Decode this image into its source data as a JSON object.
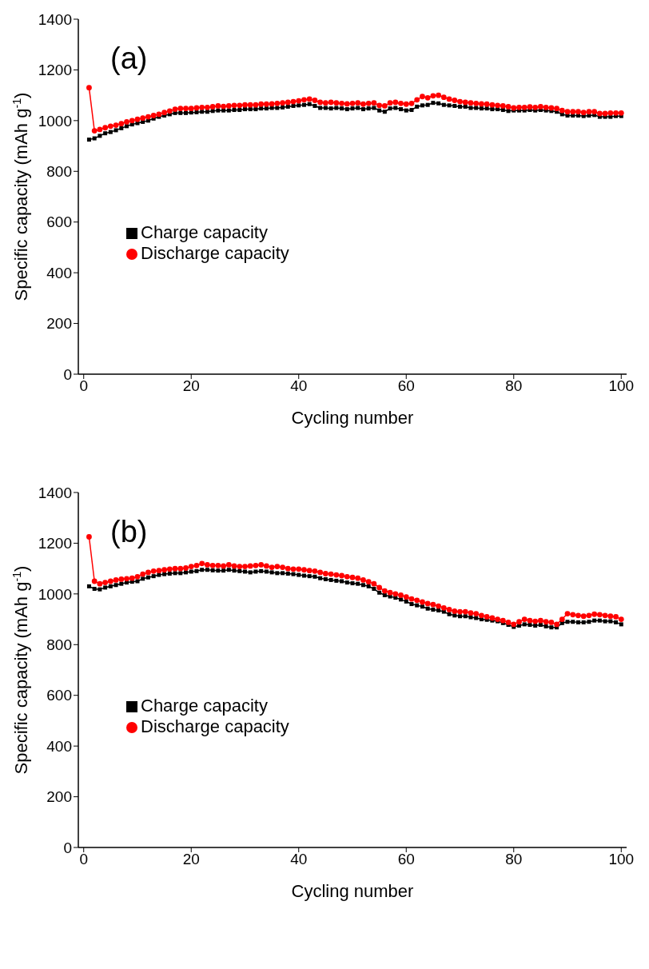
{
  "chart_data": [
    {
      "type": "line",
      "title": "(a)",
      "xlabel": "Cycling number",
      "ylabel": "Specific capacity (mAh g$^{-1}$)",
      "xlim": [
        -1,
        101
      ],
      "ylim": [
        0,
        1400
      ],
      "xticks": [
        0,
        20,
        40,
        60,
        80,
        100
      ],
      "yticks": [
        0,
        200,
        400,
        600,
        800,
        1000,
        1200,
        1400
      ],
      "legend": "left",
      "grid": false,
      "x": [
        1,
        2,
        3,
        4,
        5,
        6,
        7,
        8,
        9,
        10,
        11,
        12,
        13,
        14,
        15,
        16,
        17,
        18,
        19,
        20,
        21,
        22,
        23,
        24,
        25,
        26,
        27,
        28,
        29,
        30,
        31,
        32,
        33,
        34,
        35,
        36,
        37,
        38,
        39,
        40,
        41,
        42,
        43,
        44,
        45,
        46,
        47,
        48,
        49,
        50,
        51,
        52,
        53,
        54,
        55,
        56,
        57,
        58,
        59,
        60,
        61,
        62,
        63,
        64,
        65,
        66,
        67,
        68,
        69,
        70,
        71,
        72,
        73,
        74,
        75,
        76,
        77,
        78,
        79,
        80,
        81,
        82,
        83,
        84,
        85,
        86,
        87,
        88,
        89,
        90,
        91,
        92,
        93,
        94,
        95,
        96,
        97,
        98,
        99,
        100
      ],
      "series": [
        {
          "name": "Charge capacity",
          "color": "#000000",
          "marker": "square",
          "values": [
            925,
            930,
            940,
            950,
            955,
            962,
            970,
            978,
            985,
            990,
            995,
            1000,
            1008,
            1015,
            1020,
            1025,
            1030,
            1030,
            1030,
            1032,
            1033,
            1035,
            1035,
            1038,
            1040,
            1040,
            1040,
            1042,
            1042,
            1045,
            1045,
            1045,
            1048,
            1048,
            1050,
            1050,
            1052,
            1055,
            1058,
            1060,
            1062,
            1065,
            1058,
            1050,
            1050,
            1048,
            1050,
            1048,
            1045,
            1048,
            1050,
            1045,
            1048,
            1050,
            1040,
            1035,
            1048,
            1050,
            1045,
            1040,
            1042,
            1055,
            1060,
            1062,
            1070,
            1068,
            1062,
            1060,
            1058,
            1055,
            1055,
            1050,
            1050,
            1048,
            1048,
            1045,
            1045,
            1042,
            1038,
            1040,
            1040,
            1040,
            1042,
            1040,
            1042,
            1040,
            1038,
            1035,
            1025,
            1020,
            1020,
            1020,
            1018,
            1020,
            1022,
            1015,
            1015,
            1015,
            1018,
            1018
          ]
        },
        {
          "name": "Discharge capacity",
          "color": "#ff0000",
          "marker": "circle",
          "values": [
            1130,
            960,
            965,
            972,
            978,
            982,
            988,
            995,
            1000,
            1005,
            1010,
            1015,
            1020,
            1025,
            1032,
            1038,
            1045,
            1048,
            1048,
            1048,
            1050,
            1052,
            1052,
            1055,
            1058,
            1056,
            1058,
            1060,
            1060,
            1062,
            1062,
            1062,
            1065,
            1065,
            1066,
            1068,
            1070,
            1072,
            1075,
            1078,
            1082,
            1085,
            1080,
            1072,
            1070,
            1072,
            1070,
            1068,
            1066,
            1068,
            1070,
            1065,
            1068,
            1070,
            1060,
            1058,
            1070,
            1072,
            1068,
            1065,
            1068,
            1082,
            1095,
            1090,
            1098,
            1100,
            1092,
            1085,
            1080,
            1075,
            1072,
            1070,
            1068,
            1066,
            1065,
            1062,
            1060,
            1058,
            1055,
            1050,
            1052,
            1052,
            1054,
            1052,
            1055,
            1052,
            1050,
            1048,
            1040,
            1035,
            1035,
            1035,
            1032,
            1035,
            1035,
            1028,
            1028,
            1030,
            1030,
            1030
          ]
        }
      ]
    },
    {
      "type": "line",
      "title": "(b)",
      "xlabel": "Cycling number",
      "ylabel": "Specific capacity (mAh g$^{-1}$)",
      "xlim": [
        -1,
        101
      ],
      "ylim": [
        0,
        1400
      ],
      "xticks": [
        0,
        20,
        40,
        60,
        80,
        100
      ],
      "yticks": [
        0,
        200,
        400,
        600,
        800,
        1000,
        1200,
        1400
      ],
      "legend": "left",
      "grid": false,
      "x": [
        1,
        2,
        3,
        4,
        5,
        6,
        7,
        8,
        9,
        10,
        11,
        12,
        13,
        14,
        15,
        16,
        17,
        18,
        19,
        20,
        21,
        22,
        23,
        24,
        25,
        26,
        27,
        28,
        29,
        30,
        31,
        32,
        33,
        34,
        35,
        36,
        37,
        38,
        39,
        40,
        41,
        42,
        43,
        44,
        45,
        46,
        47,
        48,
        49,
        50,
        51,
        52,
        53,
        54,
        55,
        56,
        57,
        58,
        59,
        60,
        61,
        62,
        63,
        64,
        65,
        66,
        67,
        68,
        69,
        70,
        71,
        72,
        73,
        74,
        75,
        76,
        77,
        78,
        79,
        80,
        81,
        82,
        83,
        84,
        85,
        86,
        87,
        88,
        89,
        90,
        91,
        92,
        93,
        94,
        95,
        96,
        97,
        98,
        99,
        100
      ],
      "series": [
        {
          "name": "Charge capacity",
          "color": "#000000",
          "marker": "square",
          "values": [
            1030,
            1020,
            1018,
            1025,
            1030,
            1035,
            1040,
            1045,
            1048,
            1050,
            1060,
            1065,
            1070,
            1075,
            1078,
            1080,
            1082,
            1082,
            1085,
            1088,
            1090,
            1095,
            1095,
            1093,
            1092,
            1092,
            1095,
            1092,
            1090,
            1088,
            1085,
            1088,
            1090,
            1088,
            1085,
            1082,
            1082,
            1080,
            1078,
            1075,
            1072,
            1070,
            1068,
            1062,
            1058,
            1055,
            1052,
            1050,
            1045,
            1042,
            1040,
            1035,
            1030,
            1020,
            1005,
            995,
            990,
            985,
            978,
            970,
            960,
            955,
            950,
            942,
            938,
            935,
            930,
            920,
            915,
            912,
            912,
            908,
            905,
            900,
            898,
            895,
            892,
            885,
            878,
            870,
            875,
            880,
            878,
            875,
            878,
            872,
            868,
            868,
            885,
            890,
            890,
            888,
            888,
            890,
            895,
            895,
            892,
            892,
            888,
            880
          ]
        },
        {
          "name": "Discharge capacity",
          "color": "#ff0000",
          "marker": "circle",
          "values": [
            1225,
            1050,
            1040,
            1045,
            1050,
            1055,
            1058,
            1060,
            1062,
            1068,
            1078,
            1085,
            1090,
            1092,
            1095,
            1098,
            1100,
            1100,
            1102,
            1108,
            1112,
            1120,
            1115,
            1112,
            1112,
            1110,
            1115,
            1110,
            1108,
            1108,
            1110,
            1112,
            1115,
            1110,
            1105,
            1108,
            1105,
            1100,
            1098,
            1098,
            1095,
            1092,
            1090,
            1085,
            1080,
            1078,
            1075,
            1072,
            1068,
            1065,
            1062,
            1055,
            1048,
            1040,
            1025,
            1012,
            1005,
            1000,
            995,
            988,
            980,
            975,
            968,
            962,
            958,
            952,
            945,
            938,
            932,
            930,
            930,
            925,
            922,
            915,
            910,
            905,
            900,
            895,
            888,
            880,
            890,
            900,
            895,
            892,
            895,
            890,
            888,
            880,
            900,
            922,
            918,
            915,
            912,
            915,
            920,
            918,
            915,
            912,
            910,
            900
          ]
        }
      ]
    }
  ]
}
